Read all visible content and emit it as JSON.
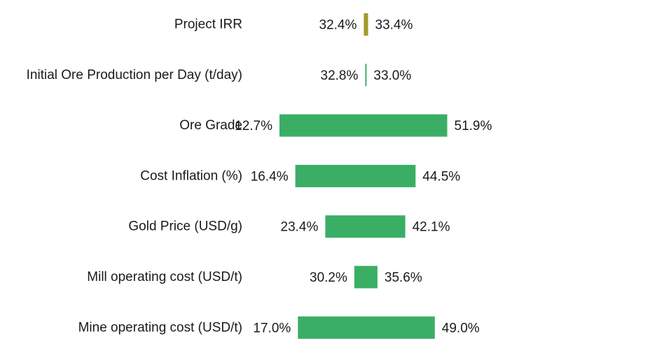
{
  "chart_data": {
    "type": "bar",
    "subtype": "tornado",
    "title": "",
    "xlabel": "",
    "ylabel": "",
    "xlim": [
      5,
      60
    ],
    "grid": false,
    "legend": "none",
    "categories": [
      "Project IRR",
      "Initial Ore Production per Day (t/day)",
      "Ore Grade",
      "Cost Inflation (%)",
      "Gold Price (USD/g)",
      "Mill operating cost (USD/t)",
      "Mine operating cost (USD/t)"
    ],
    "low_values": [
      32.4,
      32.8,
      12.7,
      16.4,
      23.4,
      30.2,
      17.0
    ],
    "high_values": [
      33.4,
      33.0,
      51.9,
      44.5,
      42.1,
      35.6,
      49.0
    ],
    "low_labels": [
      "32.4%",
      "32.8%",
      "12.7%",
      "16.4%",
      "23.4%",
      "30.2%",
      "17.0%"
    ],
    "high_labels": [
      "33.4%",
      "33.0%",
      "51.9%",
      "44.5%",
      "42.1%",
      "35.6%",
      "49.0%"
    ],
    "colors": [
      "#A39A2A",
      "#3BAE66",
      "#3BAE66",
      "#3BAE66",
      "#3BAE66",
      "#3BAE66",
      "#3BAE66"
    ]
  }
}
